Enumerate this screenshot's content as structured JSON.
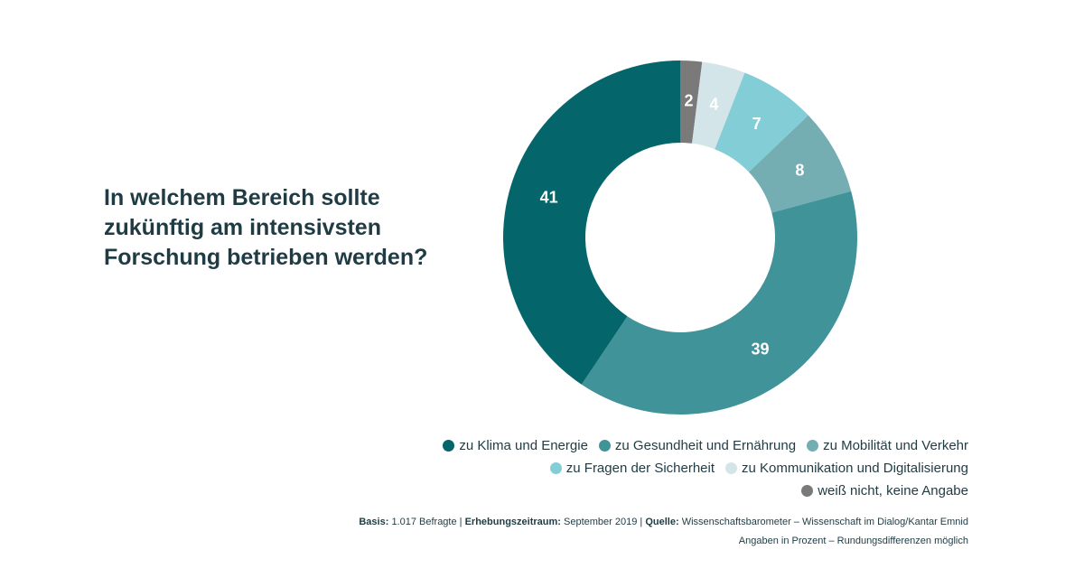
{
  "chart_data": {
    "type": "pie",
    "title": "In welchem Bereich sollte zukünftig am intensivsten Forschung betrieben werden?",
    "unit": "Prozent",
    "slices": [
      {
        "label": "weiß nicht, keine Angabe",
        "value": 2,
        "color": "#7a7a7a",
        "text": "2"
      },
      {
        "label": "zu Kommunikation und Digitalisierung",
        "value": 4,
        "color": "#d3e5e8",
        "text": "4"
      },
      {
        "label": "zu Fragen der Sicherheit",
        "value": 7,
        "color": "#83cdd6",
        "text": "7"
      },
      {
        "label": "zu Mobilität und Verkehr",
        "value": 8,
        "color": "#74aeb3",
        "text": "8"
      },
      {
        "label": "zu Gesundheit und Ernährung",
        "value": 39,
        "color": "#3f9399",
        "text": "39"
      },
      {
        "label": "zu Klima und Energie",
        "value": 41,
        "color": "#04666a",
        "text": "41"
      }
    ]
  },
  "legend": {
    "rows": [
      [
        {
          "label": "zu Klima und Energie",
          "color": "#04666a"
        },
        {
          "label": "zu Gesundheit und Ernährung",
          "color": "#3f9399"
        },
        {
          "label": "zu Mobilität und Verkehr",
          "color": "#74aeb3"
        }
      ],
      [
        {
          "label": "zu Fragen der Sicherheit",
          "color": "#83cdd6"
        },
        {
          "label": "zu Kommunikation und Digitalisierung",
          "color": "#d3e5e8"
        }
      ],
      [
        {
          "label": "weiß nicht, keine Angabe",
          "color": "#7a7a7a"
        }
      ]
    ]
  },
  "footer": {
    "basis_label": "Basis:",
    "basis_value": "1.017 Befragte",
    "sep1": "|",
    "period_label": "Erhebungszeitraum:",
    "period_value": "September 2019",
    "sep2": "|",
    "source_label": "Quelle:",
    "source_value": "Wissenschaftsbarometer – Wissenschaft im Dialog/Kantar Emnid",
    "note": "Angaben in Prozent – Rundungsdifferenzen möglich"
  }
}
